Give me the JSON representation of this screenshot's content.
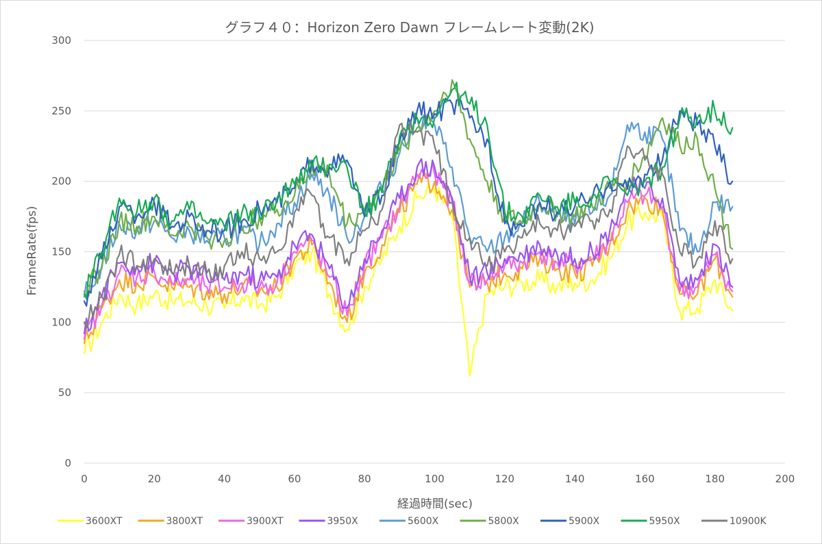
{
  "chart_data": {
    "type": "line",
    "title": "グラフ４０：Horizon Zero Dawn フレームレート変動(2K)",
    "xlabel": "経過時間(sec)",
    "ylabel": "FrameRate(fps)",
    "xlim": [
      0,
      200
    ],
    "ylim": [
      0,
      300
    ],
    "x_ticks": [
      "0",
      "20",
      "40",
      "60",
      "80",
      "100",
      "120",
      "140",
      "160",
      "180",
      "200"
    ],
    "y_ticks": [
      "0",
      "50",
      "100",
      "150",
      "200",
      "250",
      "300"
    ],
    "grid": "horizontal",
    "legend_position": "bottom",
    "x": [
      0,
      5,
      10,
      15,
      20,
      25,
      30,
      35,
      40,
      45,
      50,
      55,
      60,
      65,
      70,
      75,
      80,
      85,
      90,
      95,
      100,
      105,
      110,
      115,
      120,
      125,
      130,
      135,
      140,
      145,
      150,
      155,
      160,
      165,
      170,
      175,
      180,
      185
    ],
    "series": [
      {
        "name": "3600XT",
        "color": "#ffff33",
        "values": [
          78,
          100,
          120,
          112,
          120,
          115,
          115,
          112,
          110,
          118,
          112,
          118,
          140,
          150,
          120,
          95,
          125,
          145,
          168,
          188,
          195,
          175,
          62,
          120,
          125,
          128,
          130,
          125,
          128,
          130,
          145,
          170,
          178,
          175,
          108,
          110,
          130,
          108
        ]
      },
      {
        "name": "3800XT",
        "color": "#f5a623",
        "values": [
          85,
          110,
          130,
          128,
          132,
          125,
          125,
          122,
          120,
          125,
          122,
          125,
          145,
          155,
          128,
          100,
          135,
          155,
          178,
          198,
          200,
          180,
          125,
          128,
          135,
          138,
          145,
          138,
          135,
          140,
          155,
          180,
          188,
          180,
          120,
          120,
          145,
          118
        ]
      },
      {
        "name": "3900XT",
        "color": "#ee66ee",
        "values": [
          88,
          112,
          135,
          132,
          136,
          128,
          130,
          125,
          125,
          128,
          125,
          128,
          150,
          158,
          132,
          105,
          140,
          160,
          182,
          205,
          205,
          185,
          128,
          130,
          140,
          142,
          150,
          142,
          140,
          145,
          158,
          185,
          190,
          182,
          122,
          125,
          148,
          122
        ]
      },
      {
        "name": "3950X",
        "color": "#9955ee",
        "values": [
          92,
          118,
          142,
          140,
          142,
          135,
          138,
          132,
          130,
          135,
          130,
          132,
          155,
          162,
          138,
          110,
          145,
          165,
          188,
          210,
          210,
          188,
          132,
          135,
          145,
          148,
          155,
          148,
          145,
          150,
          165,
          195,
          195,
          188,
          128,
          130,
          155,
          125
        ]
      },
      {
        "name": "5600X",
        "color": "#5b9bd5",
        "values": [
          118,
          140,
          170,
          165,
          172,
          160,
          165,
          158,
          160,
          165,
          155,
          170,
          185,
          205,
          190,
          160,
          175,
          195,
          220,
          245,
          240,
          210,
          160,
          150,
          160,
          170,
          185,
          175,
          170,
          178,
          190,
          240,
          235,
          230,
          165,
          150,
          185,
          182
        ]
      },
      {
        "name": "5800X",
        "color": "#70ad47",
        "values": [
          122,
          138,
          172,
          168,
          175,
          162,
          168,
          160,
          158,
          168,
          175,
          180,
          190,
          210,
          205,
          170,
          180,
          195,
          222,
          238,
          250,
          272,
          230,
          200,
          175,
          170,
          185,
          178,
          175,
          182,
          195,
          200,
          218,
          245,
          225,
          230,
          195,
          152
        ]
      },
      {
        "name": "5900X",
        "color": "#3060c0",
        "values": [
          115,
          145,
          182,
          175,
          185,
          168,
          175,
          165,
          165,
          172,
          180,
          185,
          195,
          215,
          210,
          215,
          175,
          190,
          228,
          250,
          248,
          255,
          245,
          230,
          170,
          168,
          185,
          178,
          182,
          188,
          200,
          195,
          205,
          215,
          250,
          240,
          225,
          200
        ]
      },
      {
        "name": "5950X",
        "color": "#1aaa55",
        "values": [
          120,
          150,
          188,
          178,
          188,
          172,
          180,
          170,
          168,
          178,
          175,
          188,
          198,
          210,
          212,
          210,
          178,
          192,
          232,
          245,
          245,
          265,
          255,
          240,
          178,
          175,
          190,
          182,
          185,
          190,
          200,
          190,
          200,
          210,
          245,
          245,
          250,
          238
        ]
      },
      {
        "name": "10900K",
        "color": "#7f7f7f",
        "values": [
          100,
          118,
          148,
          140,
          145,
          135,
          140,
          135,
          140,
          150,
          145,
          150,
          178,
          190,
          160,
          145,
          165,
          180,
          240,
          235,
          225,
          185,
          160,
          140,
          150,
          160,
          170,
          165,
          168,
          172,
          180,
          225,
          215,
          205,
          150,
          145,
          172,
          145
        ]
      }
    ]
  }
}
